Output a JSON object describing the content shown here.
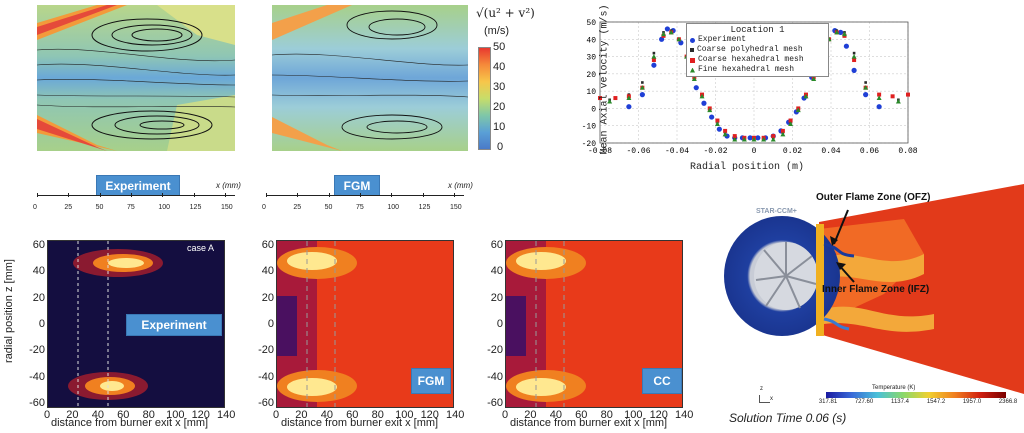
{
  "top_left": {
    "panel_labels": [
      "Experiment",
      "FGM"
    ],
    "x_axis_unit": "x (mm)",
    "x_ticks": [
      "0",
      "25",
      "50",
      "75",
      "100",
      "125",
      "150"
    ],
    "colorbar": {
      "title_formula": "√(u² + v²)",
      "unit": "(m/s)",
      "ticks": [
        "50",
        "40",
        "30",
        "20",
        "10",
        "0"
      ]
    }
  },
  "top_right": {
    "chart_data": {
      "type": "scatter",
      "title": "Location 1",
      "xlabel": "Radial position (m)",
      "ylabel": "Mean Axial velocity (m/s)",
      "xlim": [
        -0.08,
        0.08
      ],
      "ylim": [
        -20,
        50
      ],
      "x_ticks": [
        "-0.08",
        "-0.06",
        "-0.04",
        "-0.02",
        "0",
        "0.02",
        "0.04",
        "0.06",
        "0.08"
      ],
      "y_ticks": [
        "50",
        "40",
        "30",
        "20",
        "10",
        "0",
        "-10",
        "-20"
      ],
      "grid": true,
      "legend_position": "top-center",
      "series": [
        {
          "name": "Experiment",
          "color": "#1f3fd6",
          "x": [
            -0.065,
            -0.058,
            -0.052,
            -0.048,
            -0.045,
            -0.042,
            -0.038,
            -0.034,
            -0.03,
            -0.026,
            -0.022,
            -0.018,
            -0.014,
            -0.01,
            -0.006,
            -0.002,
            0.002,
            0.006,
            0.01,
            0.014,
            0.018,
            0.022,
            0.026,
            0.03,
            0.034,
            0.038,
            0.042,
            0.045,
            0.048,
            0.052,
            0.058,
            0.065
          ],
          "y": [
            1,
            8,
            25,
            40,
            46,
            45,
            38,
            25,
            12,
            3,
            -5,
            -12,
            -16,
            -17,
            -17,
            -17,
            -17,
            -17,
            -16,
            -13,
            -8,
            -2,
            6,
            18,
            30,
            40,
            45,
            44,
            36,
            22,
            8,
            1
          ]
        },
        {
          "name": "Coarse polyhedral mesh",
          "color": "#2a2a2a",
          "x": [
            -0.075,
            -0.065,
            -0.058,
            -0.052,
            -0.047,
            -0.043,
            -0.039,
            -0.035,
            -0.031,
            -0.027,
            -0.023,
            -0.019,
            -0.015,
            -0.01,
            -0.005,
            0,
            0.005,
            0.01,
            0.015,
            0.019,
            0.023,
            0.027,
            0.031,
            0.035,
            0.039,
            0.043,
            0.047,
            0.052,
            0.058,
            0.065,
            0.075
          ],
          "y": [
            5,
            8,
            15,
            32,
            44,
            45,
            40,
            30,
            18,
            8,
            0,
            -8,
            -14,
            -17,
            -17,
            -17,
            -17,
            -17,
            -14,
            -8,
            0,
            8,
            18,
            30,
            40,
            45,
            44,
            32,
            15,
            8,
            5
          ]
        },
        {
          "name": "Coarse hexahedral mesh",
          "color": "#e02020",
          "x": [
            -0.08,
            -0.072,
            -0.065,
            -0.058,
            -0.052,
            -0.047,
            -0.043,
            -0.039,
            -0.035,
            -0.031,
            -0.027,
            -0.023,
            -0.019,
            -0.015,
            -0.01,
            -0.005,
            0,
            0.005,
            0.01,
            0.015,
            0.019,
            0.023,
            0.027,
            0.031,
            0.035,
            0.039,
            0.043,
            0.047,
            0.052,
            0.058,
            0.065,
            0.072,
            0.08
          ],
          "y": [
            6,
            6,
            7,
            12,
            28,
            42,
            44,
            40,
            30,
            18,
            8,
            0,
            -7,
            -13,
            -16,
            -17,
            -17,
            -17,
            -16,
            -13,
            -7,
            0,
            8,
            18,
            30,
            40,
            44,
            42,
            28,
            12,
            8,
            7,
            8
          ]
        },
        {
          "name": "Fine hexahedral mesh",
          "color": "#2a8a2a",
          "x": [
            -0.075,
            -0.065,
            -0.058,
            -0.052,
            -0.047,
            -0.043,
            -0.039,
            -0.035,
            -0.031,
            -0.027,
            -0.023,
            -0.019,
            -0.015,
            -0.01,
            -0.005,
            0,
            0.005,
            0.01,
            0.015,
            0.019,
            0.023,
            0.027,
            0.031,
            0.035,
            0.039,
            0.043,
            0.047,
            0.052,
            0.058,
            0.065,
            0.075
          ],
          "y": [
            4,
            6,
            12,
            30,
            43,
            44,
            40,
            30,
            17,
            7,
            -1,
            -9,
            -15,
            -18,
            -18,
            -18,
            -18,
            -18,
            -15,
            -9,
            -1,
            7,
            17,
            30,
            40,
            44,
            43,
            30,
            12,
            6,
            4
          ]
        }
      ]
    }
  },
  "bottom_left": {
    "case_label": "case A",
    "panel_labels": [
      "Experiment",
      "FGM",
      "CC"
    ],
    "ylabel": "radial position z [mm]",
    "xlabel": "distance from burner exit x [mm]",
    "y_ticks": [
      "60",
      "40",
      "20",
      "0",
      "-20",
      "-40",
      "-60"
    ],
    "x_ticks": [
      "0",
      "20",
      "40",
      "60",
      "80",
      "100",
      "120",
      "140"
    ]
  },
  "bottom_right": {
    "watermark": "STAR-CCM+",
    "annotations": [
      "Outer Flame Zone (OFZ)",
      "Inner Flame Zone (IFZ)"
    ],
    "colorbar_title": "Temperature (K)",
    "colorbar_ticks": [
      "317.81",
      "727.60",
      "1137.4",
      "1547.2",
      "1957.0",
      "2366.8"
    ],
    "axis_z": "z",
    "axis_x": "x",
    "solution_time": "Solution Time 0.06 (s)"
  }
}
